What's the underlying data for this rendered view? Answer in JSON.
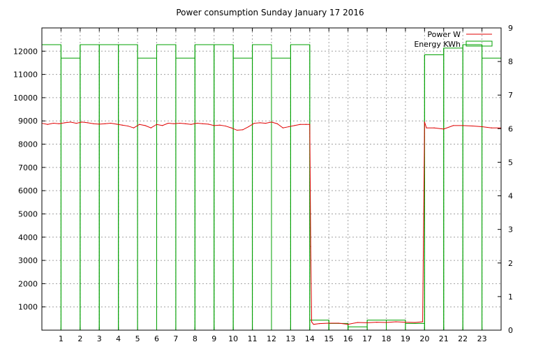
{
  "chart_data": {
    "type": "line",
    "title": "Power consumption Sunday January 17 2016",
    "xlim": [
      0,
      24
    ],
    "y1lim": [
      0,
      13000
    ],
    "y2lim": [
      0,
      9
    ],
    "x_ticks": [
      1,
      2,
      3,
      4,
      5,
      6,
      7,
      8,
      9,
      10,
      11,
      12,
      13,
      14,
      15,
      16,
      17,
      18,
      19,
      20,
      21,
      22,
      23
    ],
    "y1_ticks": [
      1000,
      2000,
      3000,
      4000,
      5000,
      6000,
      7000,
      8000,
      9000,
      10000,
      11000,
      12000
    ],
    "y2_ticks": [
      0,
      1,
      2,
      3,
      4,
      5,
      6,
      7,
      8,
      9
    ],
    "grid": true,
    "legend_position": "top-right",
    "colors": {
      "power": "#e00000",
      "energy": "#00a000"
    },
    "series": [
      {
        "name": "Power W",
        "axis": "left",
        "style": "line",
        "x": [
          0,
          0.3,
          0.6,
          0.9,
          1.2,
          1.5,
          1.8,
          2.1,
          2.4,
          2.7,
          3.0,
          3.3,
          3.6,
          3.9,
          4.2,
          4.5,
          4.8,
          5.1,
          5.4,
          5.7,
          6.0,
          6.3,
          6.6,
          6.9,
          7.2,
          7.5,
          7.8,
          8.1,
          8.4,
          8.7,
          9.0,
          9.3,
          9.6,
          9.9,
          10.2,
          10.5,
          10.8,
          11.1,
          11.4,
          11.7,
          12.0,
          12.3,
          12.6,
          12.9,
          13.2,
          13.5,
          13.8,
          14.0,
          14.05,
          14.1,
          14.2,
          14.5,
          15,
          15.5,
          16,
          16.5,
          17,
          17.5,
          18,
          18.5,
          19,
          19.5,
          19.9,
          20.0,
          20.1,
          20.5,
          21,
          21.5,
          22,
          22.5,
          23,
          23.5,
          24
        ],
        "values": [
          8900,
          8850,
          8900,
          8880,
          8920,
          8950,
          8900,
          8950,
          8920,
          8880,
          8860,
          8880,
          8900,
          8860,
          8820,
          8780,
          8700,
          8850,
          8800,
          8700,
          8850,
          8800,
          8900,
          8880,
          8900,
          8880,
          8850,
          8900,
          8880,
          8860,
          8800,
          8820,
          8780,
          8700,
          8600,
          8620,
          8750,
          8900,
          8920,
          8900,
          8950,
          8880,
          8700,
          8750,
          8800,
          8850,
          8850,
          8850,
          3600,
          350,
          250,
          280,
          300,
          300,
          250,
          330,
          320,
          340,
          330,
          360,
          340,
          330,
          360,
          8950,
          8700,
          8700,
          8650,
          8800,
          8800,
          8780,
          8750,
          8700,
          8700
        ]
      },
      {
        "name": "Energy KWh",
        "axis": "right",
        "style": "step",
        "x": [
          0,
          1,
          2,
          3,
          4,
          5,
          6,
          7,
          8,
          9,
          10,
          11,
          12,
          13,
          14,
          15,
          16,
          17,
          18,
          19,
          20,
          21,
          22,
          23
        ],
        "values": [
          8.5,
          8.1,
          8.5,
          8.5,
          8.5,
          8.1,
          8.5,
          8.1,
          8.5,
          8.5,
          8.1,
          8.5,
          8.1,
          8.5,
          0.3,
          0.2,
          0.1,
          0.3,
          0.3,
          0.2,
          8.2,
          8.4,
          8.5,
          8.1
        ]
      }
    ]
  }
}
